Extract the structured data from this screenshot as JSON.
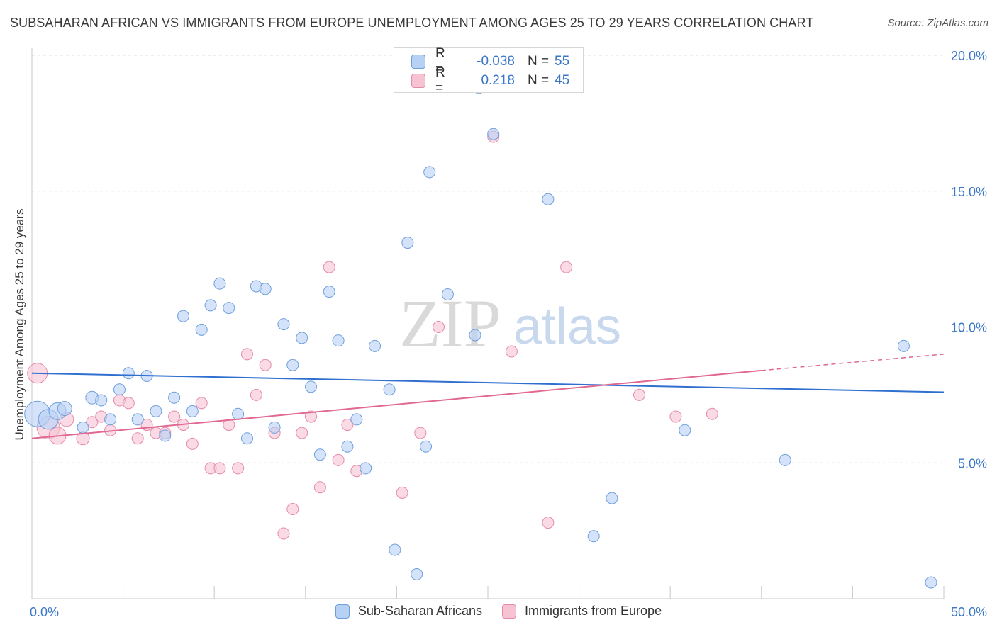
{
  "header": {
    "title": "SUBSAHARAN AFRICAN VS IMMIGRANTS FROM EUROPE UNEMPLOYMENT AMONG AGES 25 TO 29 YEARS CORRELATION CHART",
    "source": "Source: ZipAtlas.com"
  },
  "watermark": {
    "zip": "ZIP",
    "atlas": "atlas"
  },
  "legend": {
    "r_label": "R =",
    "n_label": "N =",
    "series_a": {
      "r": "-0.038",
      "n": "55"
    },
    "series_b": {
      "r": "0.218",
      "n": "45"
    }
  },
  "colors": {
    "blue_fill": "#b7d1f5",
    "blue_stroke": "#6e9fdc",
    "blue_line": "#2f6fd0",
    "pink_fill": "#f7c3d3",
    "pink_stroke": "#e58aa8",
    "pink_line": "#e06891",
    "tick_text": "#3a77c8",
    "grid": "#dcdcdc"
  },
  "chart_data": {
    "type": "scatter",
    "title": "SUBSAHARAN AFRICAN VS IMMIGRANTS FROM EUROPE UNEMPLOYMENT AMONG AGES 25 TO 29 YEARS CORRELATION CHART",
    "xlabel": "",
    "ylabel": "Unemployment Among Ages 25 to 29 years",
    "xlim": [
      0,
      50
    ],
    "ylim": [
      0,
      20
    ],
    "x_tick_labels": [
      "0.0%",
      "50.0%"
    ],
    "y_ticks": [
      5,
      10,
      15,
      20
    ],
    "y_tick_labels": [
      "5.0%",
      "10.0%",
      "15.0%",
      "20.0%"
    ],
    "grid": "horizontal dashed",
    "legend_position": "top-center",
    "series": [
      {
        "name": "Sub-Saharan Africans",
        "color": "#b7d1f5",
        "r": -0.038,
        "n": 55,
        "trend": {
          "x": [
            0,
            50
          ],
          "y": [
            8.3,
            7.6
          ]
        },
        "points": [
          [
            0.3,
            6.8,
            18
          ],
          [
            0.9,
            6.6,
            14
          ],
          [
            1.4,
            6.9,
            12
          ],
          [
            1.8,
            7.0,
            10
          ],
          [
            2.8,
            6.3,
            8
          ],
          [
            3.3,
            7.4,
            9
          ],
          [
            3.8,
            7.3,
            8
          ],
          [
            4.3,
            6.6,
            8
          ],
          [
            4.8,
            7.7,
            8
          ],
          [
            5.3,
            8.3,
            8
          ],
          [
            5.8,
            6.6,
            8
          ],
          [
            6.3,
            8.2,
            8
          ],
          [
            6.8,
            6.9,
            8
          ],
          [
            7.3,
            6.0,
            8
          ],
          [
            7.8,
            7.4,
            8
          ],
          [
            8.3,
            10.4,
            8
          ],
          [
            8.8,
            6.9,
            8
          ],
          [
            9.3,
            9.9,
            8
          ],
          [
            9.8,
            10.8,
            8
          ],
          [
            10.3,
            11.6,
            8
          ],
          [
            10.8,
            10.7,
            8
          ],
          [
            11.3,
            6.8,
            8
          ],
          [
            11.8,
            5.9,
            8
          ],
          [
            12.3,
            11.5,
            8
          ],
          [
            12.8,
            11.4,
            8
          ],
          [
            13.3,
            6.3,
            8
          ],
          [
            13.8,
            10.1,
            8
          ],
          [
            14.3,
            8.6,
            8
          ],
          [
            14.8,
            9.6,
            8
          ],
          [
            15.3,
            7.8,
            8
          ],
          [
            15.8,
            5.3,
            8
          ],
          [
            16.3,
            11.3,
            8
          ],
          [
            16.8,
            9.5,
            8
          ],
          [
            17.3,
            5.6,
            8
          ],
          [
            17.8,
            6.6,
            8
          ],
          [
            18.3,
            4.8,
            8
          ],
          [
            18.8,
            9.3,
            8
          ],
          [
            19.6,
            7.7,
            8
          ],
          [
            19.9,
            1.8,
            8
          ],
          [
            20.6,
            13.1,
            8
          ],
          [
            21.1,
            0.9,
            8
          ],
          [
            21.6,
            5.6,
            8
          ],
          [
            21.8,
            15.7,
            8
          ],
          [
            22.8,
            11.2,
            8
          ],
          [
            24.3,
            9.7,
            8
          ],
          [
            24.8,
            19.3,
            8
          ],
          [
            25.3,
            17.1,
            8
          ],
          [
            28.3,
            14.7,
            8
          ],
          [
            30.8,
            2.3,
            8
          ],
          [
            31.8,
            3.7,
            8
          ],
          [
            35.8,
            6.2,
            8
          ],
          [
            41.3,
            5.1,
            8
          ],
          [
            47.8,
            9.3,
            8
          ],
          [
            49.3,
            0.6,
            8
          ],
          [
            24.5,
            18.8,
            8
          ]
        ]
      },
      {
        "name": "Immigrants from Europe",
        "color": "#f7c3d3",
        "r": 0.218,
        "n": 45,
        "trend": {
          "x": [
            0,
            40
          ],
          "y": [
            5.9,
            8.4
          ]
        },
        "trend_dashed": {
          "x": [
            40,
            50
          ],
          "y": [
            8.4,
            9.0
          ]
        },
        "points": [
          [
            0.3,
            8.3,
            14
          ],
          [
            0.9,
            6.3,
            16
          ],
          [
            1.4,
            6.0,
            12
          ],
          [
            1.9,
            6.6,
            10
          ],
          [
            2.8,
            5.9,
            9
          ],
          [
            3.3,
            6.5,
            8
          ],
          [
            3.8,
            6.7,
            8
          ],
          [
            4.3,
            6.2,
            8
          ],
          [
            4.8,
            7.3,
            8
          ],
          [
            5.3,
            7.2,
            8
          ],
          [
            5.8,
            5.9,
            8
          ],
          [
            6.3,
            6.4,
            8
          ],
          [
            6.8,
            6.1,
            8
          ],
          [
            7.3,
            6.1,
            8
          ],
          [
            7.8,
            6.7,
            8
          ],
          [
            8.3,
            6.4,
            8
          ],
          [
            8.8,
            5.7,
            8
          ],
          [
            9.3,
            7.2,
            8
          ],
          [
            9.8,
            4.8,
            8
          ],
          [
            10.3,
            4.8,
            8
          ],
          [
            10.8,
            6.4,
            8
          ],
          [
            11.3,
            4.8,
            8
          ],
          [
            11.8,
            9.0,
            8
          ],
          [
            12.3,
            7.5,
            8
          ],
          [
            12.8,
            8.6,
            8
          ],
          [
            13.3,
            6.1,
            8
          ],
          [
            13.8,
            2.4,
            8
          ],
          [
            14.3,
            3.3,
            8
          ],
          [
            14.8,
            6.1,
            8
          ],
          [
            15.3,
            6.7,
            8
          ],
          [
            15.8,
            4.1,
            8
          ],
          [
            16.3,
            12.2,
            8
          ],
          [
            16.8,
            5.1,
            8
          ],
          [
            17.3,
            6.4,
            8
          ],
          [
            17.8,
            4.7,
            8
          ],
          [
            20.3,
            3.9,
            8
          ],
          [
            21.3,
            6.1,
            8
          ],
          [
            22.3,
            10.0,
            8
          ],
          [
            25.3,
            17.0,
            8
          ],
          [
            26.3,
            9.1,
            8
          ],
          [
            28.3,
            2.8,
            8
          ],
          [
            29.3,
            12.2,
            8
          ],
          [
            33.3,
            7.5,
            8
          ],
          [
            35.3,
            6.7,
            8
          ],
          [
            37.3,
            6.8,
            8
          ]
        ]
      }
    ]
  }
}
